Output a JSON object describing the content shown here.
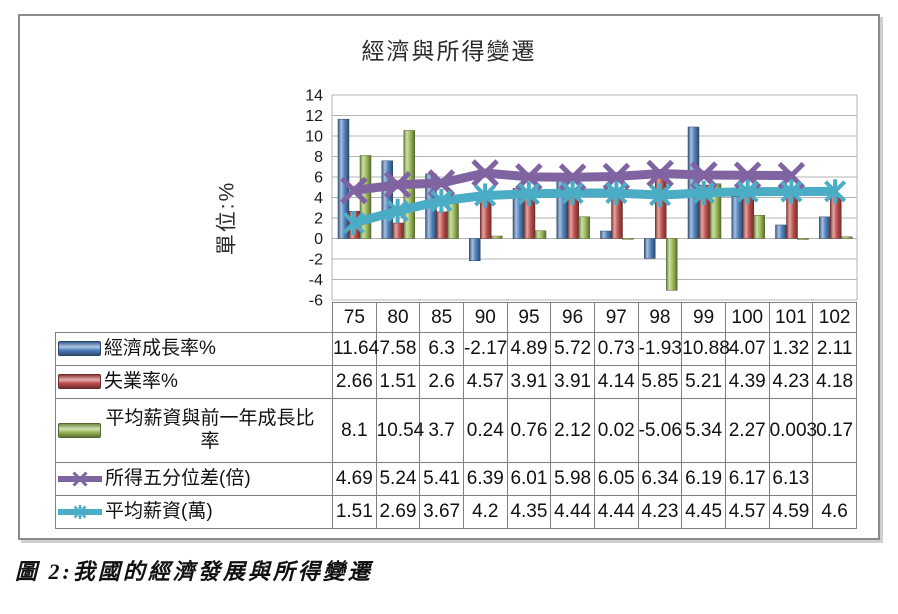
{
  "caption": "圖 2:我國的經濟發展與所得變遷",
  "chart_data": {
    "type": "combo-bar-line",
    "title": "經濟與所得變遷",
    "ylabel": "單位:%",
    "xlabel": "",
    "ylim": [
      -6,
      14
    ],
    "ytick_step": 2,
    "grid": true,
    "legend_position": "table-left-column",
    "categories": [
      "75",
      "80",
      "85",
      "90",
      "95",
      "96",
      "97",
      "98",
      "99",
      "100",
      "101",
      "102"
    ],
    "series": [
      {
        "name": "經濟成長率%",
        "type": "bar",
        "color": "#4F81BD",
        "values": [
          11.64,
          7.58,
          6.3,
          -2.17,
          4.89,
          5.72,
          0.73,
          -1.93,
          10.88,
          4.07,
          1.32,
          2.11
        ]
      },
      {
        "name": "失業率%",
        "type": "bar",
        "color": "#C0504D",
        "values": [
          2.66,
          1.51,
          2.6,
          4.57,
          3.91,
          3.91,
          4.14,
          5.85,
          5.21,
          4.39,
          4.23,
          4.18
        ]
      },
      {
        "name": "平均薪資與前一年成長比率",
        "type": "bar",
        "color": "#9BBB59",
        "values": [
          8.1,
          10.54,
          3.7,
          0.24,
          0.76,
          2.12,
          0.02,
          -5.06,
          5.34,
          2.27,
          0.003,
          0.17
        ]
      },
      {
        "name": "所得五分位差(倍)",
        "type": "line",
        "marker": "x",
        "color": "#8064A2",
        "values": [
          4.69,
          5.24,
          5.41,
          6.39,
          6.01,
          5.98,
          6.05,
          6.34,
          6.19,
          6.17,
          6.13,
          null
        ]
      },
      {
        "name": "平均薪資(萬)",
        "type": "line",
        "marker": "asterisk",
        "color": "#4BACC6",
        "values": [
          1.51,
          2.69,
          3.67,
          4.2,
          4.35,
          4.44,
          4.44,
          4.23,
          4.45,
          4.57,
          4.59,
          4.6
        ]
      }
    ]
  }
}
